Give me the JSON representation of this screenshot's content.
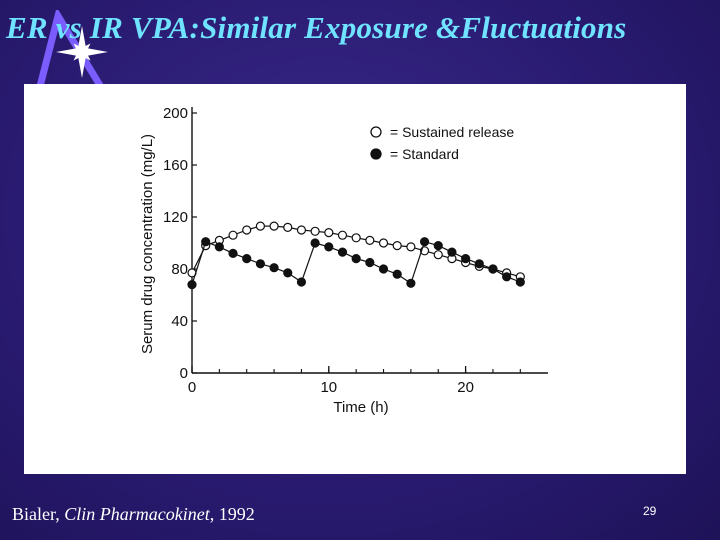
{
  "slide": {
    "title": "ER vs IR VPA:Similar Exposure &Fluctuations",
    "citation_author": "Bialer, ",
    "citation_journal": "Clin Pharmacokinet",
    "citation_year": ", 1992",
    "slide_number": "29",
    "colors": {
      "background": "#2a1b72",
      "title": "#6fe3ff",
      "logo": "#7a5cff",
      "logo_star": "#ffffff"
    },
    "logo_icon": "triangle-star-logo"
  },
  "chart_data": {
    "type": "scatter",
    "xlabel": "Time (h)",
    "ylabel": "Serum drug concentration (mg/L)",
    "xlim": [
      0,
      25
    ],
    "ylim": [
      0,
      200
    ],
    "xticks": [
      0,
      10,
      20
    ],
    "yticks": [
      0,
      40,
      80,
      120,
      160,
      200
    ],
    "xtick_labels": [
      "0",
      "10",
      "20"
    ],
    "ytick_labels": [
      "0",
      "40",
      "80",
      "120",
      "160",
      "200"
    ],
    "grid": false,
    "legend_position": "top-right",
    "series": [
      {
        "name": "Sustained release",
        "marker": "open-circle",
        "x": [
          0,
          1,
          2,
          3,
          4,
          5,
          6,
          7,
          8,
          9,
          10,
          11,
          12,
          13,
          14,
          15,
          16,
          17,
          18,
          19,
          20,
          21,
          22,
          23,
          24
        ],
        "y": [
          77,
          98,
          102,
          106,
          110,
          113,
          113,
          112,
          110,
          109,
          108,
          106,
          104,
          102,
          100,
          98,
          97,
          94,
          91,
          88,
          85,
          82,
          80,
          77,
          74
        ]
      },
      {
        "name": "Standard",
        "marker": "filled-circle",
        "x": [
          0,
          1,
          2,
          3,
          4,
          5,
          6,
          7,
          8,
          9,
          10,
          11,
          12,
          13,
          14,
          15,
          16,
          17,
          18,
          19,
          20,
          21,
          22,
          23,
          24
        ],
        "y": [
          68,
          101,
          97,
          92,
          88,
          84,
          81,
          77,
          70,
          100,
          97,
          93,
          88,
          85,
          80,
          76,
          69,
          101,
          98,
          93,
          88,
          84,
          80,
          74,
          70
        ]
      }
    ],
    "dosing_times": [
      0,
      8,
      16
    ]
  }
}
